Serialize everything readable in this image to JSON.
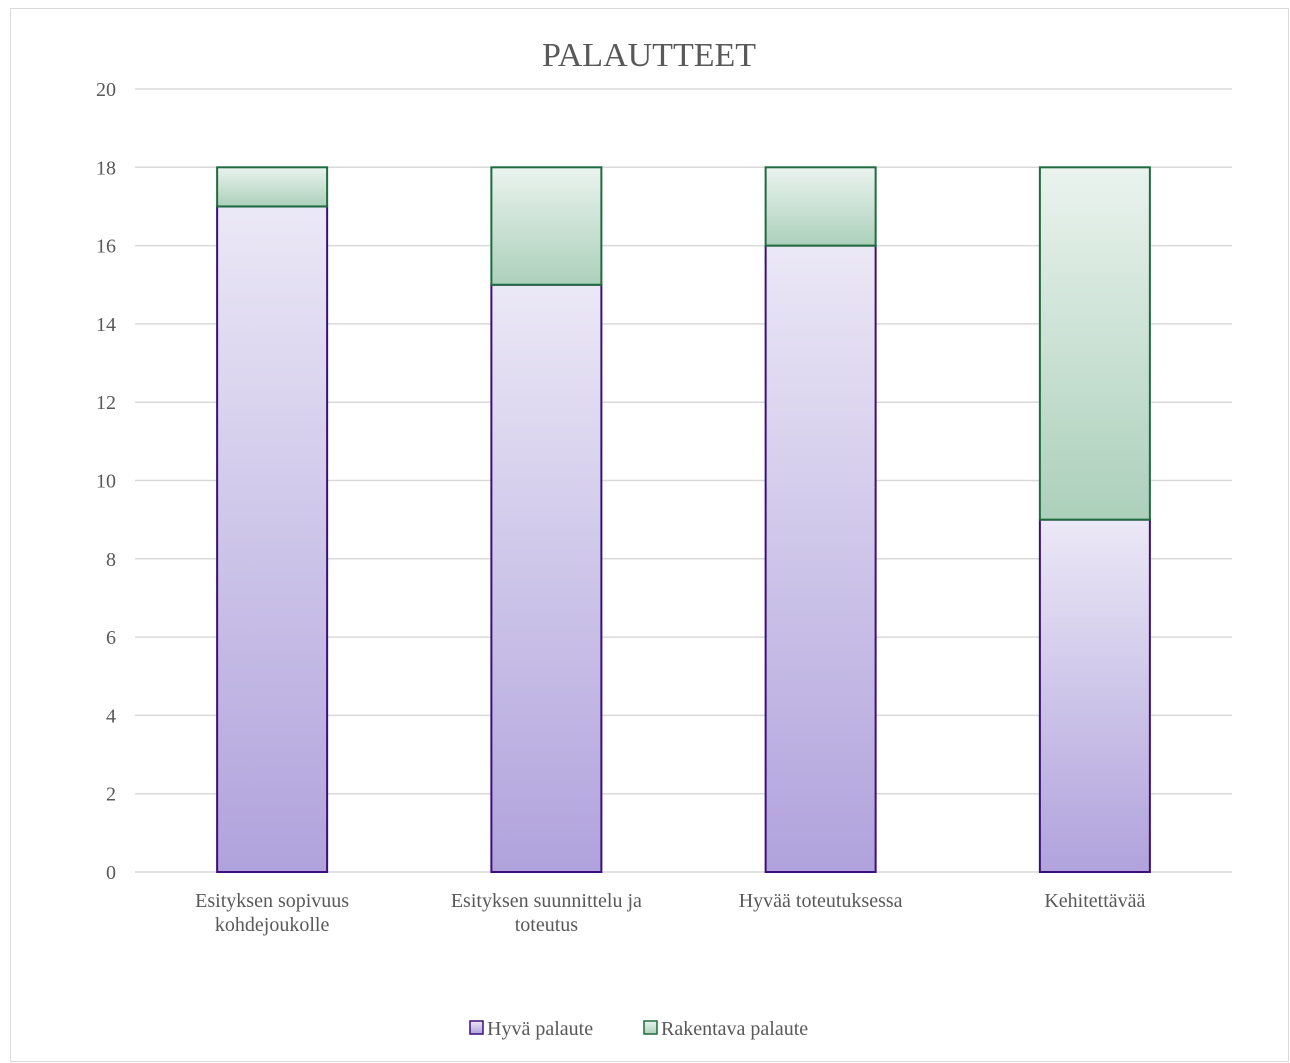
{
  "chart_data": {
    "type": "bar",
    "stacked": true,
    "title": "PALAUTTEET",
    "categories": [
      [
        "Esityksen sopivuus",
        "kohdejoukolle"
      ],
      [
        "Esityksen suunnittelu ja",
        "toteutus"
      ],
      [
        "Hyvää toteutuksessa"
      ],
      [
        "Kehitettävää"
      ]
    ],
    "series": [
      {
        "name": "Hyvä palaute",
        "values": [
          17,
          15,
          16,
          9
        ],
        "fill_top": "#ebe8f6",
        "fill_bottom": "#b0a2dc",
        "stroke": "#3d0f7a"
      },
      {
        "name": "Rakentava palaute",
        "values": [
          1,
          3,
          2,
          9
        ],
        "fill_top": "#eaf3ee",
        "fill_bottom": "#acd0bb",
        "stroke": "#1e6b3e"
      }
    ],
    "ylim": [
      0,
      20
    ],
    "yticks": [
      "0",
      "2",
      "4",
      "6",
      "8",
      "10",
      "12",
      "14",
      "16",
      "18",
      "20"
    ],
    "grid": true,
    "legend": "bottom",
    "xlabel": "",
    "ylabel": ""
  }
}
